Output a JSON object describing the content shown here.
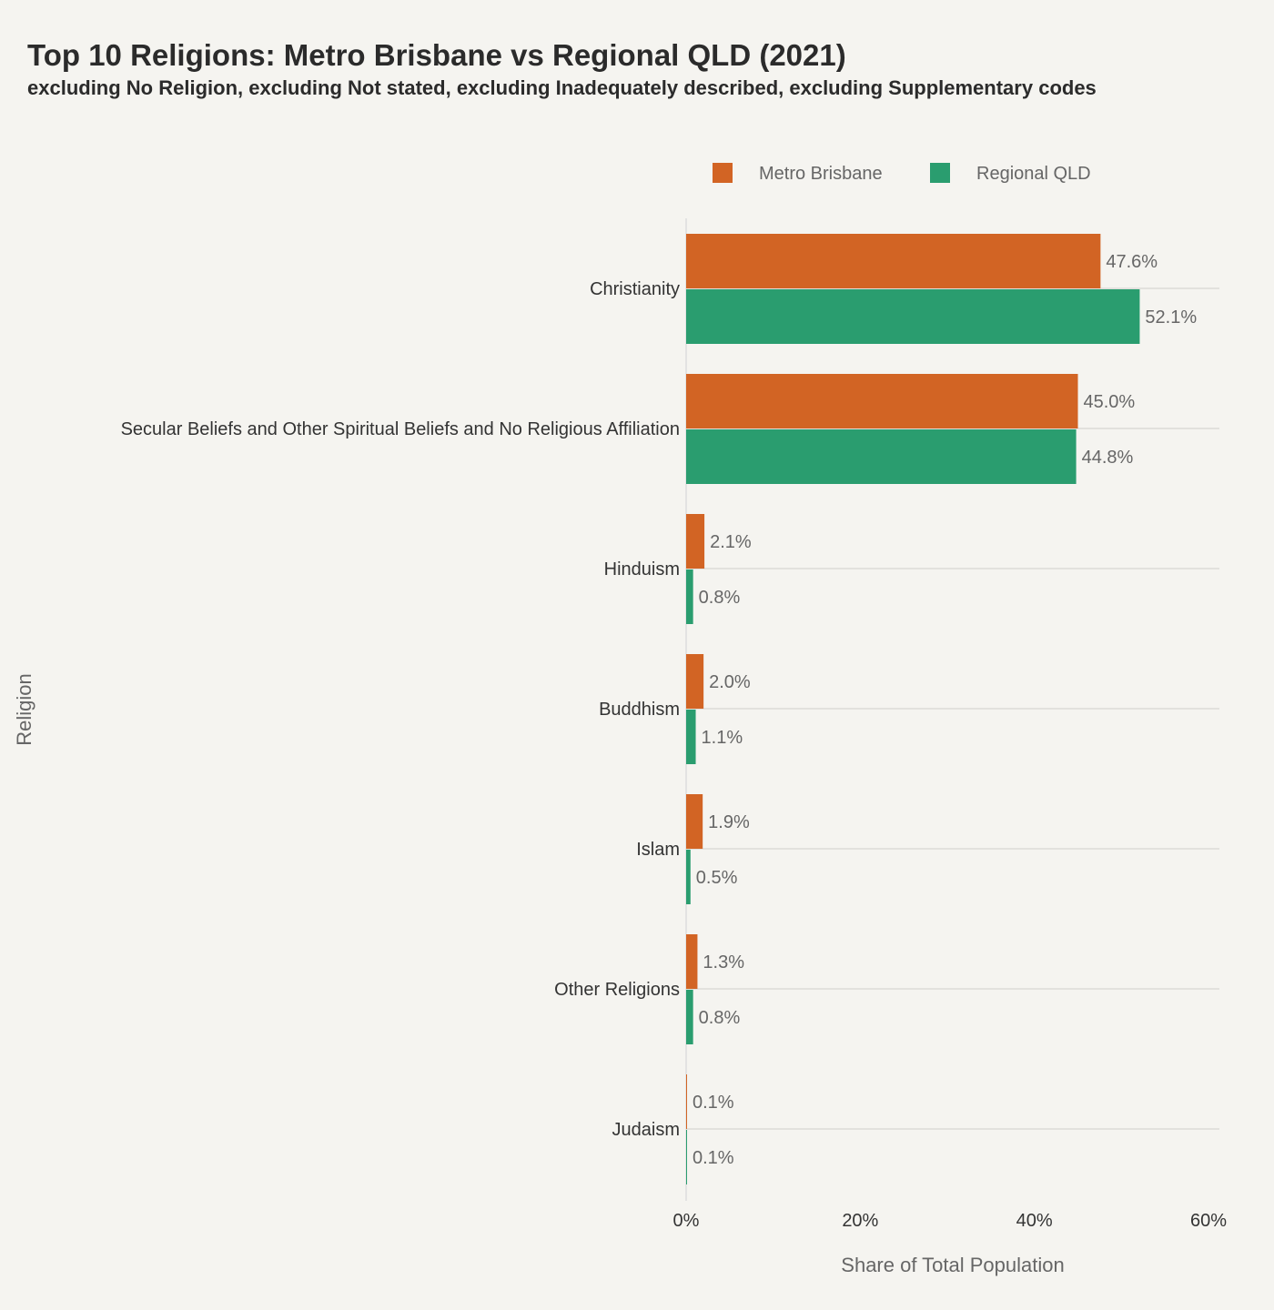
{
  "chart_data": {
    "type": "bar",
    "orientation": "horizontal",
    "title": "Top 10 Religions: Metro Brisbane vs Regional QLD (2021)",
    "subtitle": "excluding No Religion, excluding Not stated, excluding Inadequately described, excluding Supplementary codes",
    "xlabel": "Share of Total Population",
    "ylabel": "Religion",
    "xlim": [
      0,
      60
    ],
    "xticks": [
      "0%",
      "20%",
      "40%",
      "60%"
    ],
    "legend_position": "top",
    "categories": [
      "Christianity",
      "Secular Beliefs and Other Spiritual Beliefs and No Religious Affiliation",
      "Hinduism",
      "Buddhism",
      "Islam",
      "Other Religions",
      "Judaism"
    ],
    "series": [
      {
        "name": "Metro Brisbane",
        "color": "#d26424",
        "values": [
          47.6,
          45.0,
          2.1,
          2.0,
          1.9,
          1.3,
          0.1
        ],
        "labels": [
          "47.6%",
          "45.0%",
          "2.1%",
          "2.0%",
          "1.9%",
          "1.3%",
          "0.1%"
        ]
      },
      {
        "name": "Regional QLD",
        "color": "#2a9d6f",
        "values": [
          52.1,
          44.8,
          0.8,
          1.1,
          0.5,
          0.8,
          0.1
        ],
        "labels": [
          "52.1%",
          "44.8%",
          "0.8%",
          "1.1%",
          "0.5%",
          "0.8%",
          "0.1%"
        ]
      }
    ],
    "grid": true
  }
}
